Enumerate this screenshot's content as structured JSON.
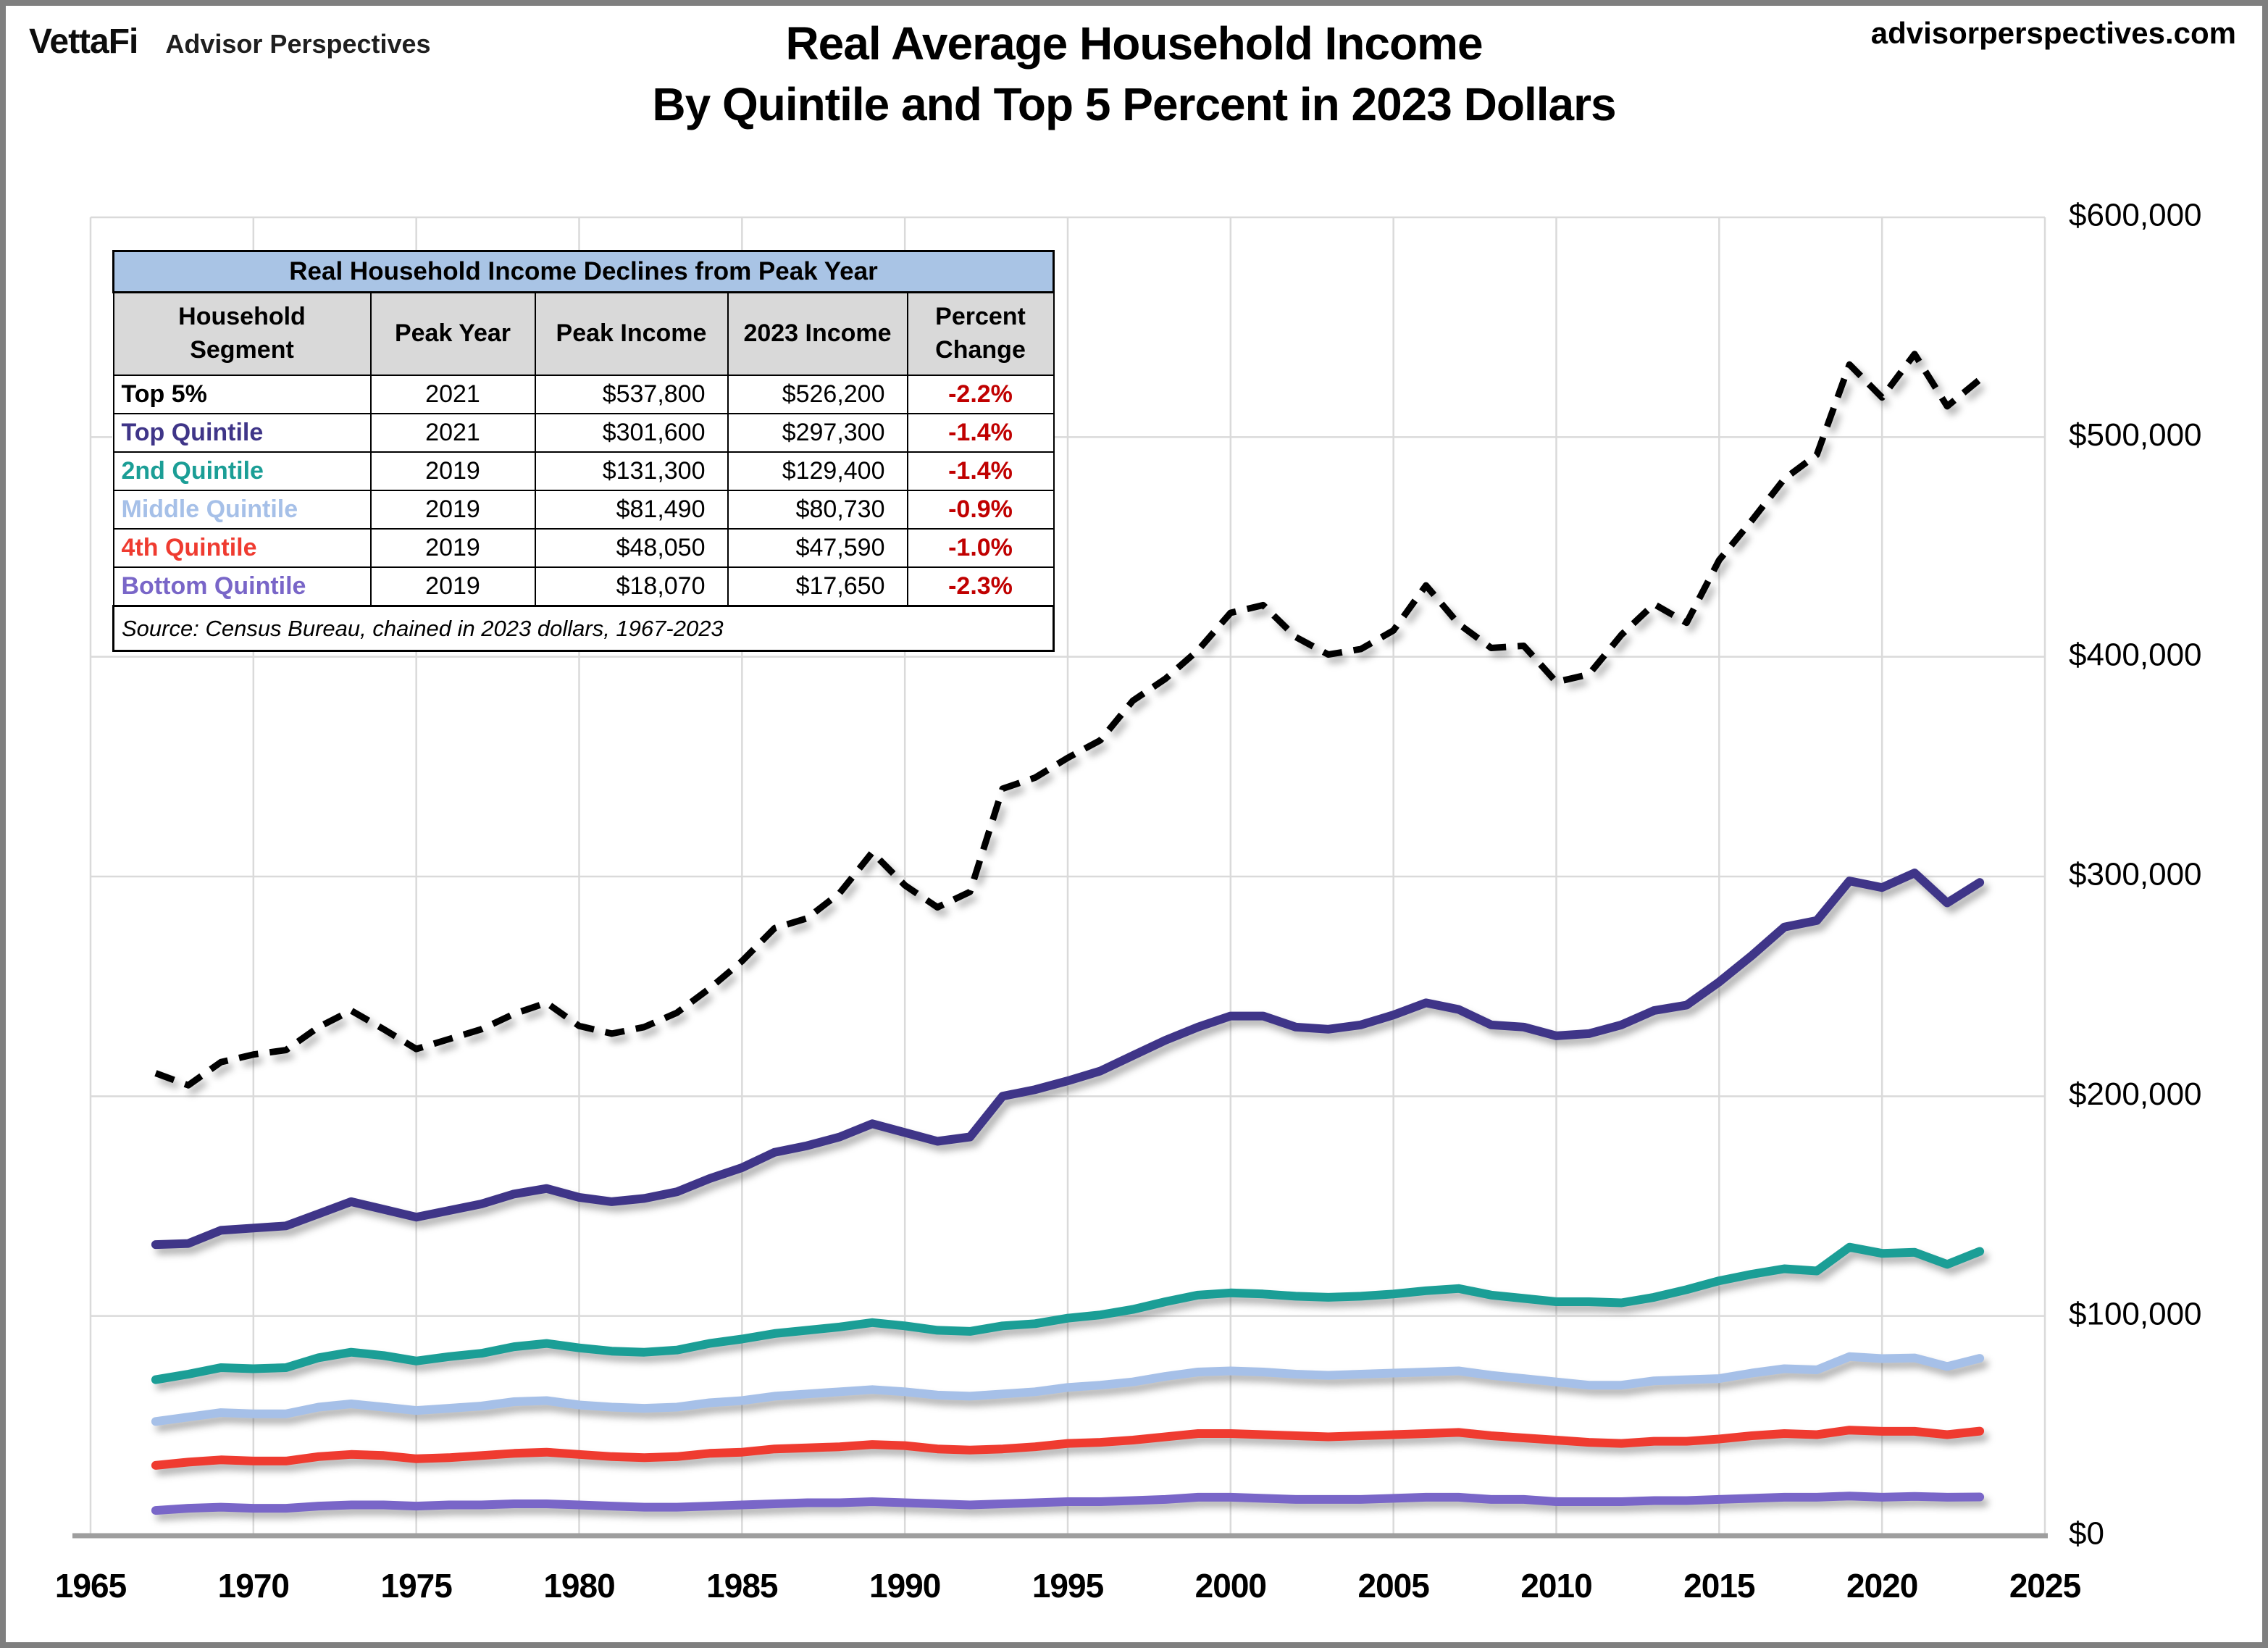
{
  "header": {
    "logo_primary": "VettaFi",
    "logo_secondary": "Advisor Perspectives",
    "site_url": "advisorperspectives.com"
  },
  "title": {
    "line1": "Real Average Household Income",
    "line2": "By Quintile and Top 5 Percent in 2023 Dollars"
  },
  "inset_table": {
    "title": "Real Household Income Declines from Peak Year",
    "columns": [
      "Household\nSegment",
      "Peak Year",
      "Peak Income",
      "2023 Income",
      "Percent\nChange"
    ],
    "rows": [
      {
        "segment": "Top 5%",
        "color": "#000000",
        "peak_year": "2021",
        "peak_income": "$537,800",
        "income_2023": "$526,200",
        "percent_change": "-2.2%"
      },
      {
        "segment": "Top Quintile",
        "color": "#3F3588",
        "peak_year": "2021",
        "peak_income": "$301,600",
        "income_2023": "$297,300",
        "percent_change": "-1.4%"
      },
      {
        "segment": "2nd Quintile",
        "color": "#1B9E96",
        "peak_year": "2019",
        "peak_income": "$131,300",
        "income_2023": "$129,400",
        "percent_change": "-1.4%"
      },
      {
        "segment": "Middle Quintile",
        "color": "#A6C0E8",
        "peak_year": "2019",
        "peak_income": "$81,490",
        "income_2023": "$80,730",
        "percent_change": "-0.9%"
      },
      {
        "segment": "4th Quintile",
        "color": "#EF3B30",
        "peak_year": "2019",
        "peak_income": "$48,050",
        "income_2023": "$47,590",
        "percent_change": "-1.0%"
      },
      {
        "segment": "Bottom Quintile",
        "color": "#7966C8",
        "peak_year": "2019",
        "peak_income": "$18,070",
        "income_2023": "$17,650",
        "percent_change": "-2.3%"
      }
    ],
    "source_note": "Source: Census Bureau, chained in 2023 dollars, 1967-2023",
    "title_bg": "#A9C4E5",
    "subheader_bg": "#D9D9D9",
    "negative_color": "#C00000"
  },
  "chart_data": {
    "type": "line",
    "title": "Real Average Household Income By Quintile and Top 5 Percent in 2023 Dollars",
    "xlabel": "",
    "ylabel": "",
    "xlim": [
      1965,
      2025
    ],
    "ylim": [
      0,
      600000
    ],
    "grid": true,
    "legend_position": "none (inset table acts as legend)",
    "x_ticks": [
      1965,
      1970,
      1975,
      1980,
      1985,
      1990,
      1995,
      2000,
      2005,
      2010,
      2015,
      2020,
      2025
    ],
    "y_ticks": [
      {
        "value": 0,
        "label": "$0"
      },
      {
        "value": 100000,
        "label": "$100,000"
      },
      {
        "value": 200000,
        "label": "$200,000"
      },
      {
        "value": 300000,
        "label": "$300,000"
      },
      {
        "value": 400000,
        "label": "$400,000"
      },
      {
        "value": 500000,
        "label": "$500,000"
      },
      {
        "value": 600000,
        "label": "$600,000"
      }
    ],
    "x": [
      1967,
      1968,
      1969,
      1970,
      1971,
      1972,
      1973,
      1974,
      1975,
      1976,
      1977,
      1978,
      1979,
      1980,
      1981,
      1982,
      1983,
      1984,
      1985,
      1986,
      1987,
      1988,
      1989,
      1990,
      1991,
      1992,
      1993,
      1994,
      1995,
      1996,
      1997,
      1998,
      1999,
      2000,
      2001,
      2002,
      2003,
      2004,
      2005,
      2006,
      2007,
      2008,
      2009,
      2010,
      2011,
      2012,
      2013,
      2014,
      2015,
      2016,
      2017,
      2018,
      2019,
      2020,
      2021,
      2022,
      2023
    ],
    "series": [
      {
        "name": "Top 5%",
        "color": "#000000",
        "dashed": true,
        "width": 9,
        "values": [
          210500,
          205000,
          215500,
          219000,
          221000,
          231500,
          239000,
          230500,
          221500,
          226000,
          230500,
          237500,
          242500,
          232000,
          228500,
          231500,
          238000,
          249000,
          261500,
          276500,
          281000,
          292500,
          311000,
          296000,
          286000,
          293000,
          340000,
          345000,
          354000,
          362000,
          380000,
          390000,
          403000,
          420000,
          423500,
          409000,
          401000,
          403500,
          412000,
          432500,
          415000,
          404000,
          405000,
          388500,
          392000,
          410000,
          424000,
          415500,
          444000,
          462000,
          481000,
          492000,
          533000,
          518000,
          537800,
          514000,
          526200
        ]
      },
      {
        "name": "Top Quintile",
        "color": "#3F3588",
        "dashed": false,
        "width": 12,
        "values": [
          132500,
          133000,
          139000,
          140000,
          141000,
          146500,
          152000,
          148500,
          145000,
          148000,
          151000,
          155500,
          158000,
          154000,
          152000,
          153500,
          156500,
          162500,
          167500,
          174500,
          177500,
          181500,
          187500,
          183500,
          179500,
          181500,
          200000,
          203000,
          207000,
          211500,
          218500,
          225500,
          231500,
          236500,
          236500,
          231500,
          230500,
          232500,
          237000,
          242500,
          239500,
          232500,
          231500,
          227500,
          228500,
          232500,
          239000,
          241500,
          252000,
          264000,
          277000,
          280000,
          298000,
          295000,
          301600,
          288000,
          297300
        ]
      },
      {
        "name": "2nd Quintile",
        "color": "#1B9E96",
        "dashed": false,
        "width": 12,
        "values": [
          71000,
          73500,
          76500,
          76000,
          76500,
          81000,
          83500,
          82000,
          79500,
          81500,
          83000,
          86000,
          87500,
          85500,
          84000,
          83500,
          84500,
          87500,
          89500,
          92000,
          93500,
          95000,
          97000,
          95500,
          93500,
          93000,
          95500,
          96500,
          99000,
          100500,
          103000,
          106500,
          109500,
          110500,
          110000,
          109000,
          108500,
          109000,
          110000,
          111500,
          112500,
          109500,
          108000,
          106500,
          106500,
          106000,
          108500,
          112000,
          116000,
          119000,
          121500,
          120500,
          131300,
          128500,
          129000,
          123500,
          129400
        ]
      },
      {
        "name": "Middle Quintile",
        "color": "#A6C0E8",
        "dashed": false,
        "width": 12,
        "values": [
          52000,
          54000,
          56000,
          55500,
          55500,
          58500,
          60000,
          58500,
          57000,
          58000,
          59000,
          61000,
          61500,
          59500,
          58500,
          58000,
          58500,
          60500,
          61500,
          63500,
          64500,
          65500,
          66500,
          65500,
          64000,
          63500,
          64500,
          65500,
          67500,
          68500,
          70000,
          72500,
          74500,
          75000,
          74500,
          73500,
          73000,
          73500,
          74000,
          74500,
          75000,
          73000,
          71500,
          70000,
          68500,
          68500,
          70500,
          71000,
          71500,
          74000,
          76000,
          75500,
          81490,
          80600,
          80900,
          77000,
          80730
        ]
      },
      {
        "name": "4th Quintile",
        "color": "#EF3B30",
        "dashed": false,
        "width": 12,
        "values": [
          32000,
          33500,
          34500,
          34000,
          34000,
          36000,
          37000,
          36500,
          35000,
          35500,
          36500,
          37500,
          38000,
          37000,
          36000,
          35500,
          36000,
          37500,
          38000,
          39500,
          40000,
          40500,
          41500,
          41000,
          39500,
          39000,
          39500,
          40500,
          42000,
          42500,
          43500,
          45000,
          46500,
          46500,
          46000,
          45500,
          45000,
          45500,
          46000,
          46500,
          47000,
          45500,
          44500,
          43500,
          42500,
          42000,
          43000,
          43000,
          44000,
          45500,
          46500,
          46000,
          48050,
          47500,
          47500,
          46000,
          47590
        ]
      },
      {
        "name": "Bottom Quintile",
        "color": "#7966C8",
        "dashed": false,
        "width": 12,
        "values": [
          11500,
          12500,
          13000,
          12500,
          12500,
          13500,
          14000,
          14000,
          13500,
          14000,
          14000,
          14500,
          14500,
          14000,
          13500,
          13000,
          13000,
          13500,
          14000,
          14500,
          15000,
          15000,
          15500,
          15000,
          14500,
          14000,
          14500,
          15000,
          15500,
          15500,
          16000,
          16500,
          17500,
          17500,
          17000,
          16500,
          16500,
          16500,
          17000,
          17500,
          17500,
          16500,
          16500,
          15500,
          15500,
          15500,
          16000,
          16000,
          16500,
          17000,
          17500,
          17500,
          18070,
          17500,
          17900,
          17500,
          17650
        ]
      }
    ]
  }
}
